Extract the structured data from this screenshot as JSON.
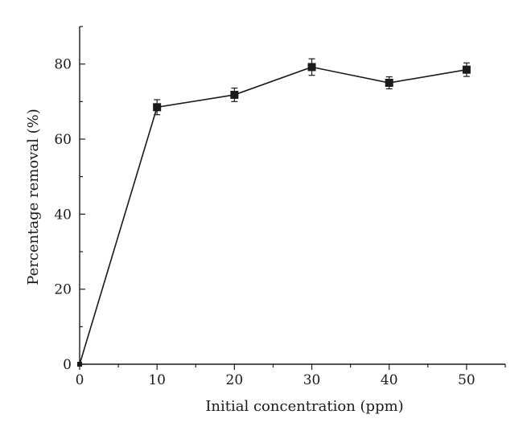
{
  "chart_data": {
    "type": "line",
    "title": "",
    "xlabel": "Initial concentration (ppm)",
    "ylabel": "Percentage removal (%)",
    "xlim": [
      0,
      55
    ],
    "ylim": [
      0,
      90
    ],
    "x_ticks": [
      0,
      10,
      20,
      30,
      40,
      50
    ],
    "y_ticks": [
      0,
      20,
      40,
      60,
      80
    ],
    "grid": false,
    "legend": "none",
    "marker": "square",
    "color": "#1a1a1a",
    "series": [
      {
        "x": [
          0,
          10,
          20,
          30,
          40,
          50
        ],
        "y": [
          0,
          68.5,
          71.8,
          79.2,
          75.0,
          78.5
        ],
        "error": [
          0,
          2.0,
          1.8,
          2.2,
          1.6,
          1.8
        ]
      }
    ]
  }
}
